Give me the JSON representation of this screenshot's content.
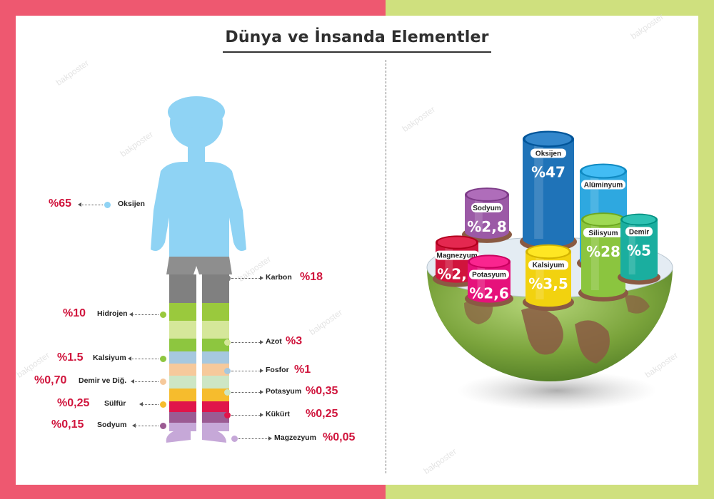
{
  "title": "Dünya ve İnsanda Elementler",
  "watermark": "bakposter",
  "colors": {
    "frame_left": "#ee5870",
    "frame_right": "#cfe07e",
    "percent": "#d0143c",
    "head_torso": "#8fd3f4",
    "shorts": "#8e8e8e"
  },
  "human": [
    {
      "name": "Oksijen",
      "value": "%65",
      "color": "#8fd3f4"
    },
    {
      "name": "Karbon",
      "value": "%18",
      "color": "#808080"
    },
    {
      "name": "Hidrojen",
      "value": "%10",
      "color": "#9ac93d"
    },
    {
      "name": "Azot",
      "value": "%3",
      "color": "#d5e79a"
    },
    {
      "name": "Kalsiyum",
      "value": "%1.5",
      "color": "#8dc63f"
    },
    {
      "name": "Fosfor",
      "value": "%1",
      "color": "#a6c8df"
    },
    {
      "name": "Demir ve Diğ.",
      "value": "%0,70",
      "color": "#f6c99b"
    },
    {
      "name": "Potasyum",
      "value": "%0,35",
      "color": "#cde6c5"
    },
    {
      "name": "Sülfür",
      "value": "%0,25",
      "color": "#f6bc2d"
    },
    {
      "name": "Kükürt",
      "value": "%0,25",
      "color": "#e0154a"
    },
    {
      "name": "Sodyum",
      "value": "%0,15",
      "color": "#9b5b93"
    },
    {
      "name": "Magzezyum",
      "value": "%0,05",
      "color": "#c6a8d8"
    }
  ],
  "earth": [
    {
      "name": "Oksijen",
      "value": "%47",
      "color": "#1f73b8"
    },
    {
      "name": "Alüminyum",
      "value": "",
      "color": "#2ea8e0"
    },
    {
      "name": "Sodyum",
      "value": "%2,8",
      "color": "#9b59a6"
    },
    {
      "name": "Silisyum",
      "value": "%28",
      "color": "#8bc53f"
    },
    {
      "name": "Demir",
      "value": "%5",
      "color": "#1aae9f"
    },
    {
      "name": "Magnezyum",
      "value": "%2,1",
      "color": "#d0143c"
    },
    {
      "name": "Potasyum",
      "value": "%2,6",
      "color": "#e6117b"
    },
    {
      "name": "Kalsiyum",
      "value": "%3,5",
      "color": "#f2d20f"
    }
  ]
}
